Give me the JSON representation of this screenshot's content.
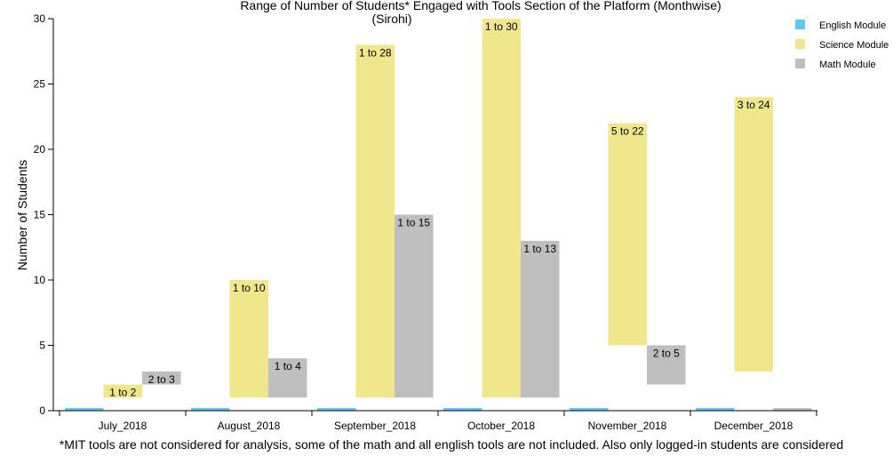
{
  "chart_data": {
    "type": "bar",
    "title_line1": "Range of Number of Students* Engaged with Tools Section of the Platform (Monthwise)",
    "title_line2": "(Sirohi)",
    "ylabel": "Number of Students",
    "xlabel": "",
    "ylim": [
      0,
      30
    ],
    "yticks": [
      0,
      5,
      10,
      15,
      20,
      25,
      30
    ],
    "categories": [
      "July_2018",
      "August_2018",
      "September_2018",
      "October_2018",
      "November_2018",
      "December_2018"
    ],
    "series": [
      {
        "name": "English Module",
        "color": "#5bc8f5",
        "ranges": [
          [
            0,
            0.2
          ],
          [
            0,
            0.2
          ],
          [
            0,
            0.2
          ],
          [
            0,
            0.2
          ],
          [
            0,
            0.2
          ],
          [
            0,
            0.2
          ]
        ],
        "labels": [
          "",
          "",
          "",
          "",
          "",
          ""
        ]
      },
      {
        "name": "Science Module",
        "color": "#f0e68c",
        "ranges": [
          [
            1,
            2
          ],
          [
            1,
            10
          ],
          [
            1,
            28
          ],
          [
            1,
            30
          ],
          [
            5,
            22
          ],
          [
            3,
            24
          ]
        ],
        "labels": [
          "1 to 2",
          "1 to 10",
          "1 to 28",
          "1 to 30",
          "5 to 22",
          "3 to 24"
        ]
      },
      {
        "name": "Math Module",
        "color": "#bebebe",
        "ranges": [
          [
            2,
            3
          ],
          [
            1,
            4
          ],
          [
            1,
            15
          ],
          [
            1,
            13
          ],
          [
            2,
            5
          ],
          [
            0,
            0.2
          ]
        ],
        "labels": [
          "2 to 3",
          "1 to 4",
          "1 to 15",
          "1 to 13",
          "2 to 5",
          ""
        ]
      }
    ],
    "legend_position": "top-right",
    "grid": false
  },
  "footnote": "*MIT tools are not considered for analysis, some of the math and all english tools are not included. Also only logged-in students are considered"
}
